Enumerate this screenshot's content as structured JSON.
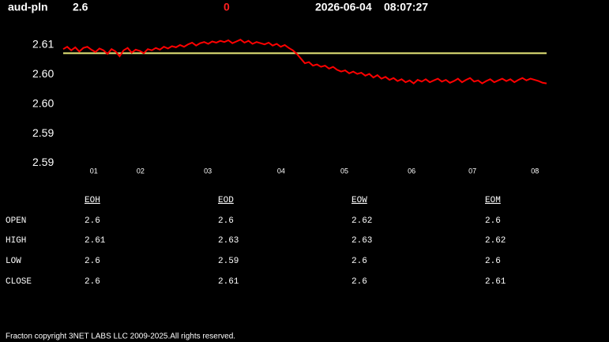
{
  "header": {
    "symbol": "aud-pln",
    "price": 2.6,
    "change": 0,
    "date": "2026-06-04",
    "time": "08:07:27"
  },
  "chart_data": {
    "type": "line",
    "series": [
      {
        "color": "#ff0000",
        "values": [
          2.6068,
          2.6072,
          2.6066,
          2.6071,
          2.6064,
          2.607,
          2.6072,
          2.6067,
          2.6063,
          2.6069,
          2.6066,
          2.606,
          2.6068,
          2.6064,
          2.6056,
          2.6066,
          2.607,
          2.6062,
          2.6067,
          2.6065,
          2.6061,
          2.6068,
          2.6066,
          2.607,
          2.6067,
          2.6072,
          2.6069,
          2.6073,
          2.6071,
          2.6075,
          2.6072,
          2.6076,
          2.6079,
          2.6074,
          2.6078,
          2.608,
          2.6077,
          2.6081,
          2.6079,
          2.6082,
          2.608,
          2.6083,
          2.6078,
          2.6081,
          2.6084,
          2.6079,
          2.6082,
          2.6077,
          2.608,
          2.6078,
          2.6076,
          2.6079,
          2.6074,
          2.6077,
          2.6072,
          2.6075,
          2.607,
          2.6066,
          2.606,
          2.6052,
          2.6044,
          2.6046,
          2.604,
          2.6042,
          2.6038,
          2.604,
          2.6035,
          2.6038,
          2.6033,
          2.603,
          2.6032,
          2.6027,
          2.603,
          2.6026,
          2.6028,
          2.6023,
          2.6026,
          2.602,
          2.6024,
          2.6018,
          2.6021,
          2.6016,
          2.6019,
          2.6014,
          2.6017,
          2.6012,
          2.6015,
          2.601,
          2.6016,
          2.6013,
          2.6017,
          2.6012,
          2.6015,
          2.6018,
          2.6013,
          2.6016,
          2.6011,
          2.6014,
          2.6018,
          2.6012,
          2.6016,
          2.6019,
          2.6013,
          2.6015,
          2.601,
          2.6014,
          2.6017,
          2.6012,
          2.6015,
          2.6018,
          2.6014,
          2.6017,
          2.6012,
          2.6016,
          2.6019,
          2.6015,
          2.6018,
          2.6016,
          2.6014,
          2.6011,
          2.601
        ]
      }
    ],
    "reference_line": {
      "value": 2.6061,
      "color": "#e8e87a"
    },
    "xlim": [
      0,
      120
    ],
    "xticks": [
      {
        "value": 7.6,
        "label": "01"
      },
      {
        "value": 19.2,
        "label": "02"
      },
      {
        "value": 35.9,
        "label": "03"
      },
      {
        "value": 54.1,
        "label": "04"
      },
      {
        "value": 69.8,
        "label": "05"
      },
      {
        "value": 86.5,
        "label": "06"
      },
      {
        "value": 101.6,
        "label": "07"
      },
      {
        "value": 117.1,
        "label": "08"
      }
    ],
    "ylim": [
      2.5865,
      2.6095
    ],
    "yticks": [
      {
        "value": 2.5875,
        "label": "2.59"
      },
      {
        "value": 2.5925,
        "label": "2.59"
      },
      {
        "value": 2.5975,
        "label": "2.60"
      },
      {
        "value": 2.6025,
        "label": "2.60"
      },
      {
        "value": 2.6075,
        "label": "2.61"
      }
    ]
  },
  "table": {
    "columns": [
      "EOH",
      "EOD",
      "EOW",
      "EOM"
    ],
    "rows": [
      [
        "OPEN",
        2.6,
        2.6,
        2.62,
        2.6
      ],
      [
        "HIGH",
        2.61,
        2.63,
        2.63,
        2.62
      ],
      [
        "LOW",
        2.6,
        2.59,
        2.6,
        2.6
      ],
      [
        "CLOSE",
        2.6,
        2.61,
        2.6,
        2.61
      ]
    ]
  },
  "footer": "Fracton copyright 3NET LABS LLC 2009-2025.All rights reserved."
}
